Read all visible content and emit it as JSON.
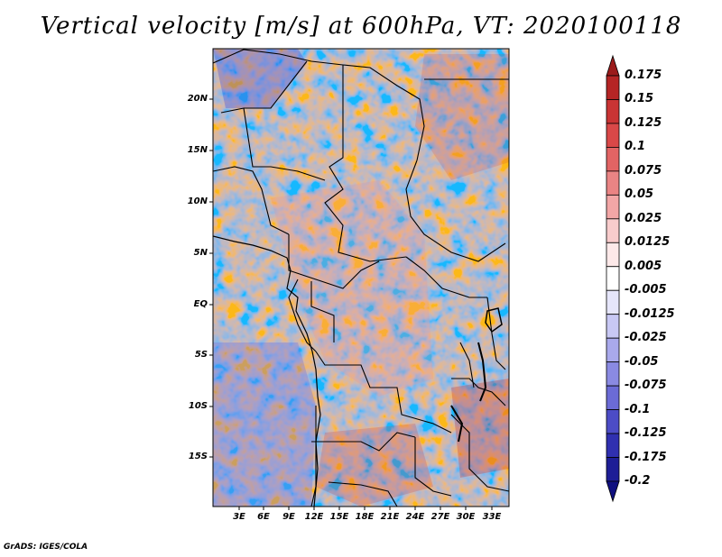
{
  "title": "Vertical velocity [m/s] at 600hPa, VT: 2020100118",
  "credit": "GrADS: IGES/COLA",
  "lat_labels": [
    "20N",
    "15N",
    "10N",
    "5N",
    "EQ",
    "5S",
    "10S",
    "15S"
  ],
  "lon_labels": [
    "3E",
    "6E",
    "9E",
    "12E",
    "15E",
    "18E",
    "21E",
    "24E",
    "27E",
    "30E",
    "33E"
  ],
  "colorbar": {
    "labels": [
      "0.175",
      "0.15",
      "0.125",
      "0.1",
      "0.075",
      "0.05",
      "0.025",
      "0.0125",
      "0.005",
      "-0.005",
      "-0.0125",
      "-0.025",
      "-0.05",
      "-0.075",
      "-0.1",
      "-0.125",
      "-0.175",
      "-0.2"
    ],
    "colors": [
      "#9b1b1b",
      "#b52525",
      "#c93434",
      "#d94848",
      "#e26464",
      "#ea8484",
      "#f2a6a6",
      "#f8cccc",
      "#fde9e9",
      "#ffffff",
      "#e6e6fa",
      "#c8c8f4",
      "#a9a9ec",
      "#8a8ae2",
      "#6b6bd6",
      "#4c4cc6",
      "#3030b0",
      "#1e1e96",
      "#101080"
    ]
  }
}
